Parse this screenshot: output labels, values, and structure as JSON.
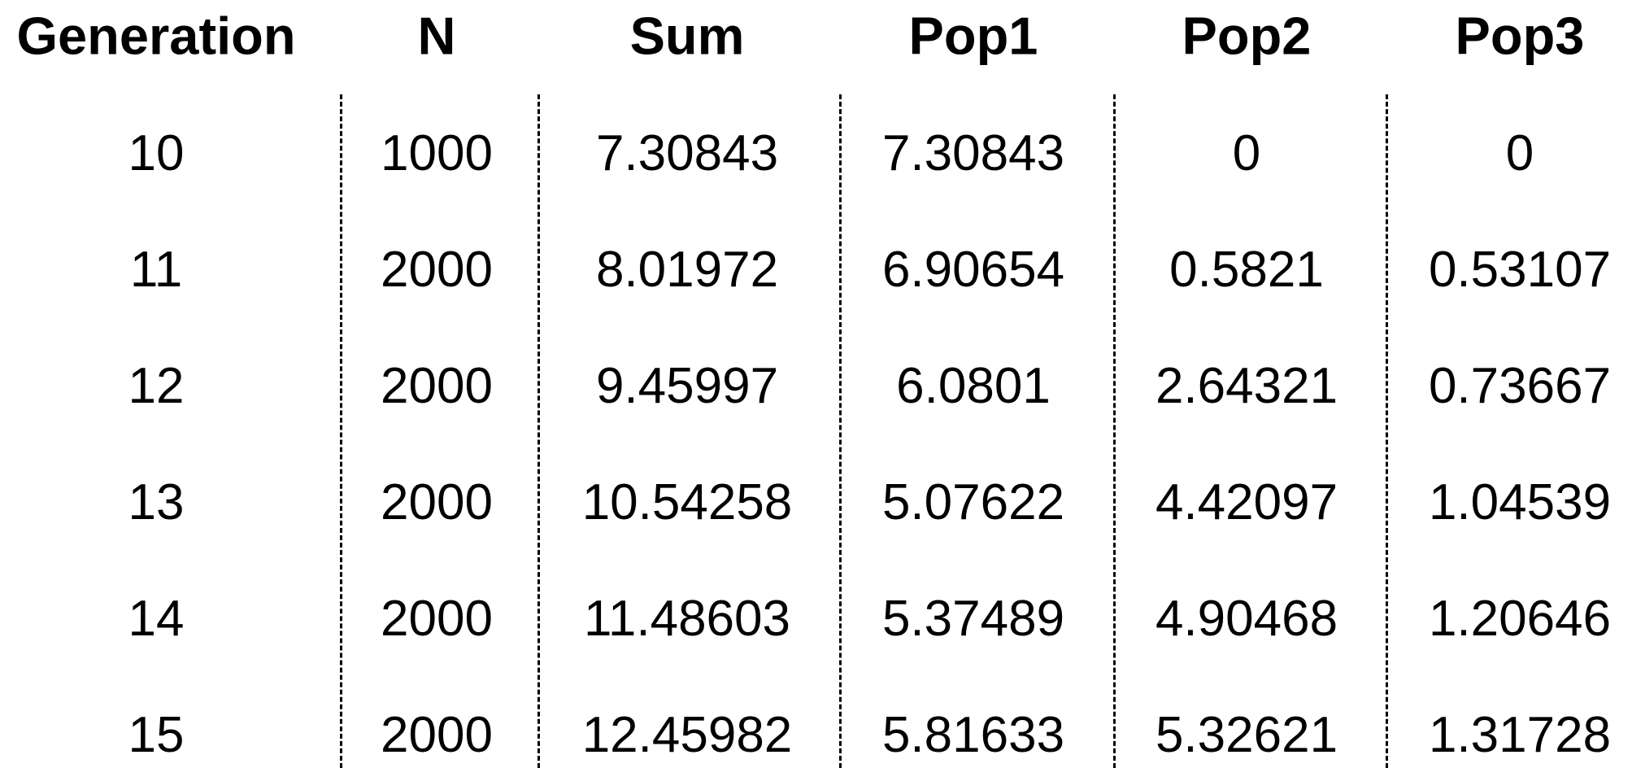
{
  "chart_data": {
    "type": "table",
    "columns": [
      "Generation",
      "N",
      "Sum",
      "Pop1",
      "Pop2",
      "Pop3"
    ],
    "rows": [
      [
        "10",
        "1000",
        "7.30843",
        "7.30843",
        "0",
        "0"
      ],
      [
        "11",
        "2000",
        "8.01972",
        "6.90654",
        "0.5821",
        "0.53107"
      ],
      [
        "12",
        "2000",
        "9.45997",
        "6.0801",
        "2.64321",
        "0.73667"
      ],
      [
        "13",
        "2000",
        "10.54258",
        "5.07622",
        "4.42097",
        "1.04539"
      ],
      [
        "14",
        "2000",
        "11.48603",
        "5.37489",
        "4.90468",
        "1.20646"
      ],
      [
        "15",
        "2000",
        "12.45982",
        "5.81633",
        "5.32621",
        "1.31728"
      ]
    ]
  }
}
